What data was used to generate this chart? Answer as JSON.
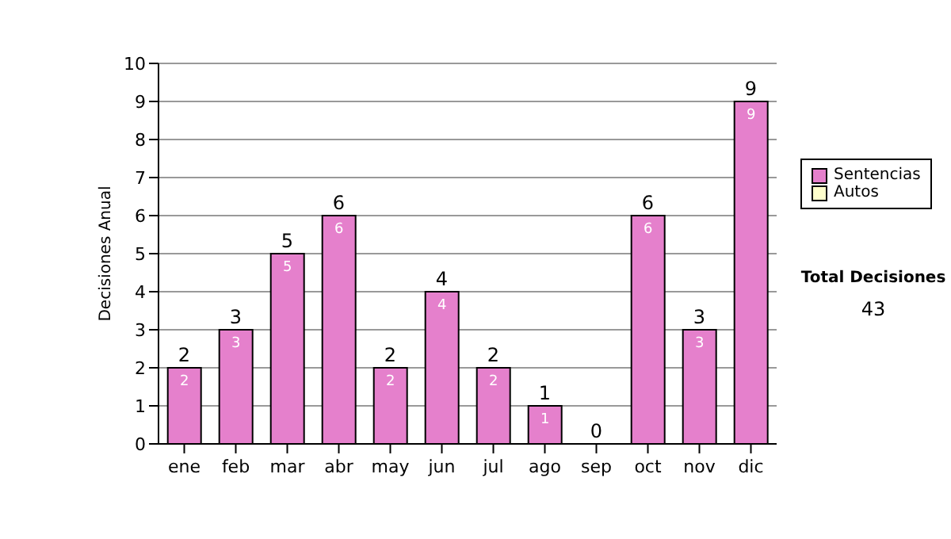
{
  "chart_data": {
    "type": "bar",
    "stacked": true,
    "categories": [
      "ene",
      "feb",
      "mar",
      "abr",
      "may",
      "jun",
      "jul",
      "ago",
      "sep",
      "oct",
      "nov",
      "dic"
    ],
    "series": [
      {
        "name": "Sentencias",
        "color": "#e580cc",
        "values": [
          2,
          3,
          5,
          6,
          2,
          4,
          2,
          1,
          0,
          6,
          3,
          9
        ],
        "value_labels": [
          "2",
          "3",
          "5",
          "6",
          "2",
          "4",
          "2",
          "1",
          null,
          "6",
          "3",
          "9"
        ]
      },
      {
        "name": "Autos",
        "color": "#ffffcc",
        "values": [
          0,
          0,
          0,
          0,
          0,
          0,
          0,
          0,
          0,
          0,
          0,
          0
        ]
      }
    ],
    "totals": [
      "2",
      "3",
      "5",
      "6",
      "2",
      "4",
      "2",
      "1",
      "0",
      "6",
      "3",
      "9"
    ],
    "ylabel": "Decisiones Anual",
    "ylim": [
      0,
      10
    ],
    "yticks": [
      0,
      1,
      2,
      3,
      4,
      5,
      6,
      7,
      8,
      9,
      10
    ],
    "grid": "y",
    "legend": "right",
    "annotations": [
      "Total Decisiones",
      "43"
    ]
  }
}
